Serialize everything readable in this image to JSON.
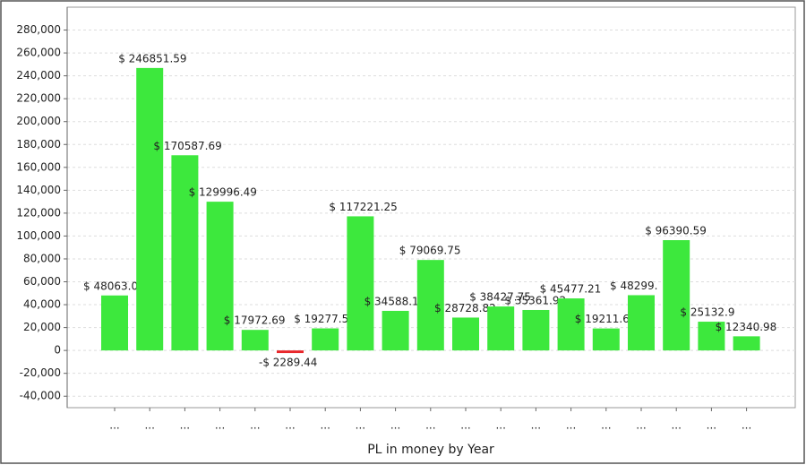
{
  "chart_data": {
    "type": "bar",
    "x_label": "PL in money by Year",
    "categories": [
      "...",
      "...",
      "...",
      "...",
      "...",
      "...",
      "...",
      "...",
      "...",
      "...",
      "...",
      "...",
      "...",
      "...",
      "...",
      "...",
      "...",
      "...",
      "..."
    ],
    "values": [
      48063,
      246851.59,
      170587.69,
      129996.49,
      17972.69,
      -2289.44,
      19277.5,
      117221.25,
      34588.1,
      79069.75,
      28728.82,
      38427.75,
      35361.92,
      45477.21,
      19211.6,
      48299,
      96390.59,
      25132.9,
      12340.98
    ],
    "value_labels": [
      "$ 48063.0",
      "$ 246851.59",
      "$ 170587.69",
      "$ 129996.49",
      "$ 17972.69",
      "-$ 2289.44",
      "$ 19277.5",
      "$ 117221.25",
      "$ 34588.1",
      "$ 79069.75",
      "$ 28728.82",
      "$ 38427.75",
      "$ 35361.92",
      "$ 45477.21",
      "$ 19211.6",
      "$ 48299.",
      "$ 96390.59",
      "$ 25132.9",
      "$ 12340.98"
    ],
    "color": "#3de83d",
    "negative_color": "#e8262a",
    "ylim": [
      -50000,
      300000
    ],
    "yticks": [
      {
        "value": -40000,
        "label": "-40,000"
      },
      {
        "value": -20000,
        "label": "-20,000"
      },
      0,
      {
        "value": 20000,
        "label": "20,000"
      },
      {
        "value": 40000,
        "label": "40,000"
      },
      {
        "value": 60000,
        "label": "60,000"
      },
      {
        "value": 80000,
        "label": "80,000"
      },
      {
        "value": 100000,
        "label": "100,000"
      },
      {
        "value": 120000,
        "label": "120,000"
      },
      {
        "value": 140000,
        "label": "140,000"
      },
      {
        "value": 160000,
        "label": "160,000"
      },
      {
        "value": 180000,
        "label": "180,000"
      },
      {
        "value": 200000,
        "label": "200,000"
      },
      {
        "value": 220000,
        "label": "220,000"
      },
      {
        "value": 240000,
        "label": "240,000"
      },
      {
        "value": 260000,
        "label": "260,000"
      },
      {
        "value": 280000,
        "label": "280,000"
      }
    ],
    "grid": true
  }
}
